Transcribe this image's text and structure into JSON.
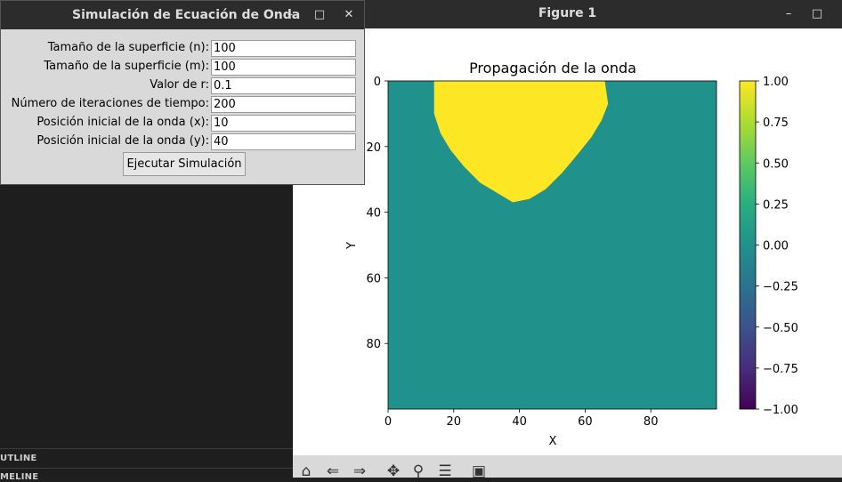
{
  "sidebar": {
    "outline_label": "UTLINE",
    "timeline_label": "MELINE"
  },
  "figure": {
    "title": "Figure 1",
    "min_icon": "–",
    "max_icon": "□",
    "toolbar_icons": [
      "home-icon",
      "back-icon",
      "forward-icon",
      "pan-icon",
      "zoom-icon",
      "configure-icon",
      "save-icon"
    ]
  },
  "dialog": {
    "title": "Simulación de Ecuación de Onda",
    "min_icon": "–",
    "max_icon": "□",
    "close_icon": "✕",
    "fields": [
      {
        "label": "Tamaño de la superficie (n):",
        "value": "100"
      },
      {
        "label": "Tamaño de la superficie (m):",
        "value": "100"
      },
      {
        "label": "Valor de r:",
        "value": "0.1"
      },
      {
        "label": "Número de iteraciones de tiempo:",
        "value": "200"
      },
      {
        "label": "Posición inicial de la onda (x):",
        "value": "10"
      },
      {
        "label": "Posición inicial de la onda (y):",
        "value": "40"
      }
    ],
    "run_label": "Ejecutar Simulación"
  },
  "chart_data": {
    "type": "heatmap",
    "title": "Propagación de la onda",
    "xlabel": "X",
    "ylabel": "Y",
    "xlim": [
      0,
      100
    ],
    "ylim": [
      100,
      0
    ],
    "xticks": [
      "0",
      "20",
      "40",
      "60",
      "80"
    ],
    "yticks": [
      "0",
      "20",
      "40",
      "60",
      "80"
    ],
    "background_value": 0.0,
    "region_value": 1.0,
    "region_boundary": [
      [
        14,
        0
      ],
      [
        14,
        10
      ],
      [
        16,
        16
      ],
      [
        19,
        21
      ],
      [
        23,
        26
      ],
      [
        28,
        31
      ],
      [
        33,
        34
      ],
      [
        38,
        37
      ],
      [
        43,
        36
      ],
      [
        48,
        33
      ],
      [
        53,
        28
      ],
      [
        58,
        22
      ],
      [
        62,
        17
      ],
      [
        65,
        12
      ],
      [
        67,
        7
      ],
      [
        66,
        0
      ]
    ],
    "colorbar": {
      "ticks": [
        "1.00",
        "0.75",
        "0.50",
        "0.25",
        "0.00",
        "−0.25",
        "−0.50",
        "−0.75",
        "−1.00"
      ],
      "range": [
        -1,
        1
      ]
    },
    "colors": {
      "zero": "#21918c",
      "one": "#fde725",
      "minus_one": "#440154"
    }
  }
}
